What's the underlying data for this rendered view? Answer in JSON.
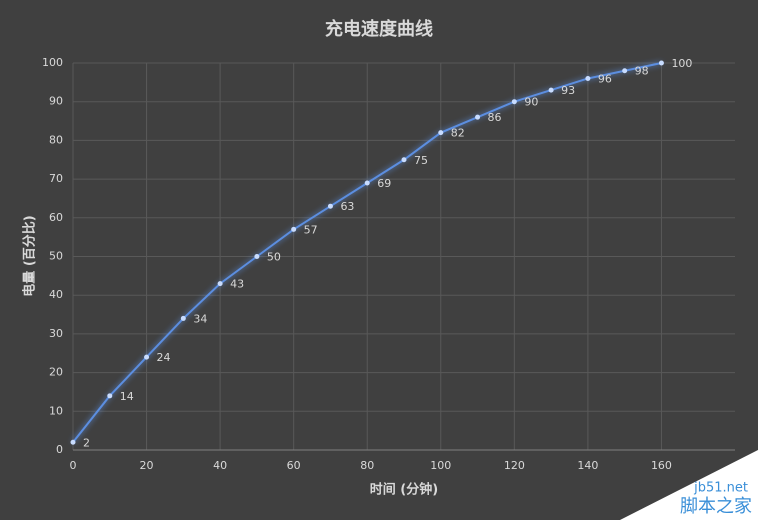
{
  "chart_data": {
    "type": "line",
    "title": "充电速度曲线",
    "x_label": "时间 (分钟)",
    "y_label": "电量 (百分比)",
    "x": [
      0,
      10,
      20,
      30,
      40,
      50,
      60,
      70,
      80,
      90,
      100,
      110,
      120,
      130,
      140,
      150,
      160
    ],
    "series": [
      {
        "name": "电量",
        "color": "#5b8ee0",
        "values": [
          2,
          14,
          24,
          34,
          43,
          50,
          57,
          63,
          69,
          75,
          82,
          86,
          90,
          93,
          96,
          98,
          100
        ]
      }
    ],
    "xlim": [
      0,
      180
    ],
    "xticks": [
      0,
      20,
      40,
      60,
      80,
      100,
      120,
      140,
      160
    ],
    "ylim": [
      0,
      100
    ],
    "yticks": [
      0,
      10,
      20,
      30,
      40,
      50,
      60,
      70,
      80,
      90,
      100
    ],
    "grid": true,
    "data_labels": true
  },
  "watermark": {
    "site": "jb51.net",
    "name": "脚本之家"
  }
}
